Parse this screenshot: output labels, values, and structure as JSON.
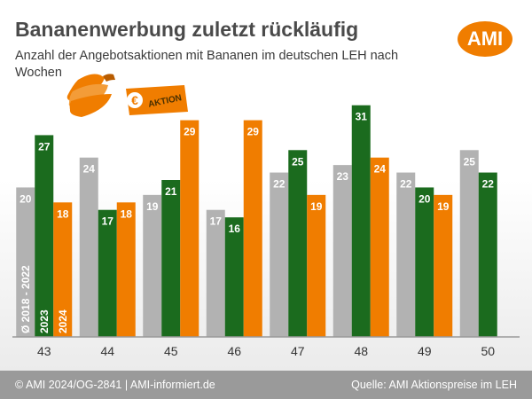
{
  "title": "Bananenwerbung zuletzt rückläufig",
  "subtitle": "Anzahl der Angebotsaktionen mit Bananen im deutschen LEH nach Wochen",
  "logo_text": "AMI",
  "badge": {
    "currency": "€",
    "label": "AKTION"
  },
  "footer": {
    "left": "© AMI 2024/OG-2841 | AMI-informiert.de",
    "right": "Quelle: AMI Aktionspreise im LEH"
  },
  "chart_data": {
    "type": "bar",
    "title": "Bananenwerbung zuletzt rückläufig",
    "subtitle": "Anzahl der Angebotsaktionen mit Bananen im deutschen LEH nach Wochen",
    "xlabel": "",
    "ylabel": "",
    "ylim": [
      0,
      35
    ],
    "grid": false,
    "legend": "series labels written vertically inside the first group of bars",
    "categories": [
      "43",
      "44",
      "45",
      "46",
      "47",
      "48",
      "49",
      "50"
    ],
    "series": [
      {
        "name": "Ø 2018 - 2022",
        "color": "#b2b2b2",
        "values": [
          20,
          24,
          19,
          17,
          22,
          23,
          22,
          25
        ]
      },
      {
        "name": "2023",
        "color": "#1b6b1e",
        "values": [
          27,
          17,
          21,
          16,
          25,
          31,
          20,
          22
        ]
      },
      {
        "name": "2024",
        "color": "#f07d00",
        "values": [
          18,
          18,
          29,
          29,
          19,
          24,
          19,
          null
        ]
      }
    ]
  }
}
